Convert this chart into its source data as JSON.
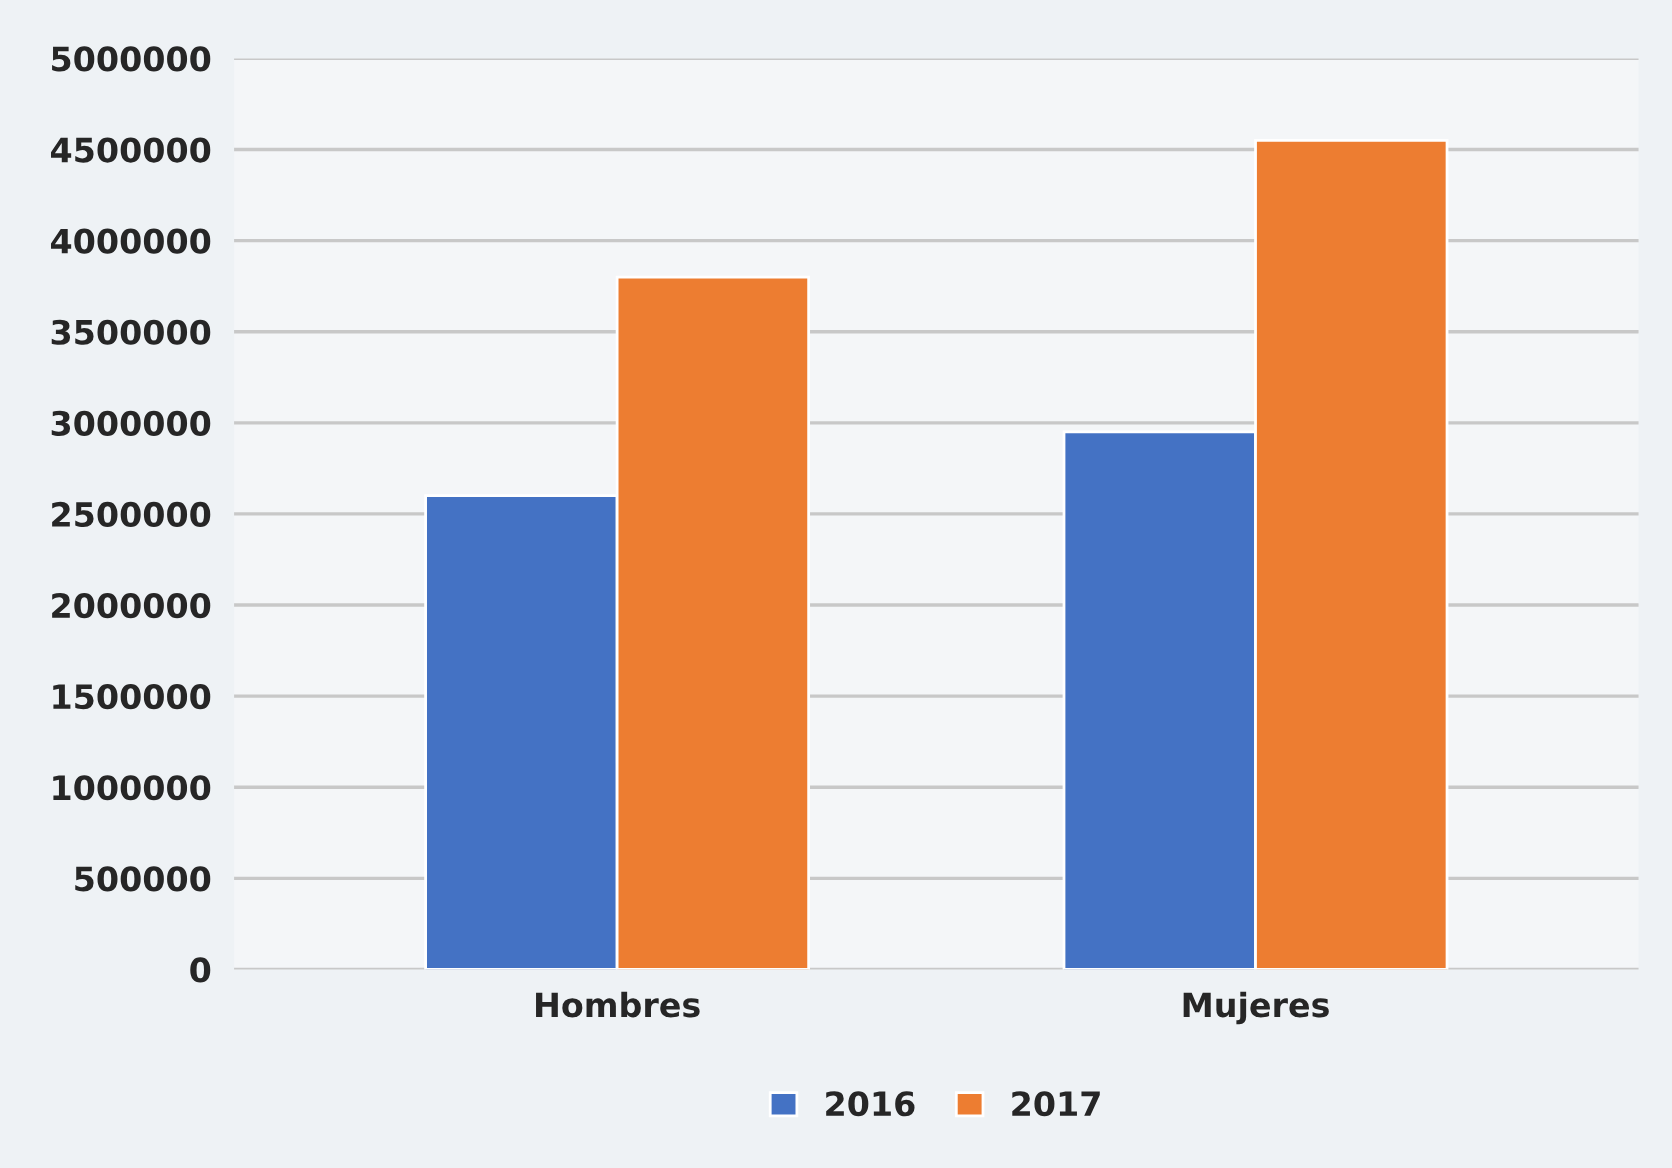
{
  "chart_data": {
    "type": "bar",
    "categories": [
      "Hombres",
      "Mujeres"
    ],
    "series": [
      {
        "name": "2016",
        "color": "#4472c4",
        "values": [
          2600000,
          2950000
        ]
      },
      {
        "name": "2017",
        "color": "#ed7d31",
        "values": [
          3800000,
          4550000
        ]
      }
    ],
    "ylim": [
      0,
      5000000
    ],
    "yticks": [
      0,
      500000,
      1000000,
      1500000,
      2000000,
      2500000,
      3000000,
      3500000,
      4000000,
      4500000,
      5000000
    ],
    "grid": "y",
    "legend": "bottom"
  }
}
